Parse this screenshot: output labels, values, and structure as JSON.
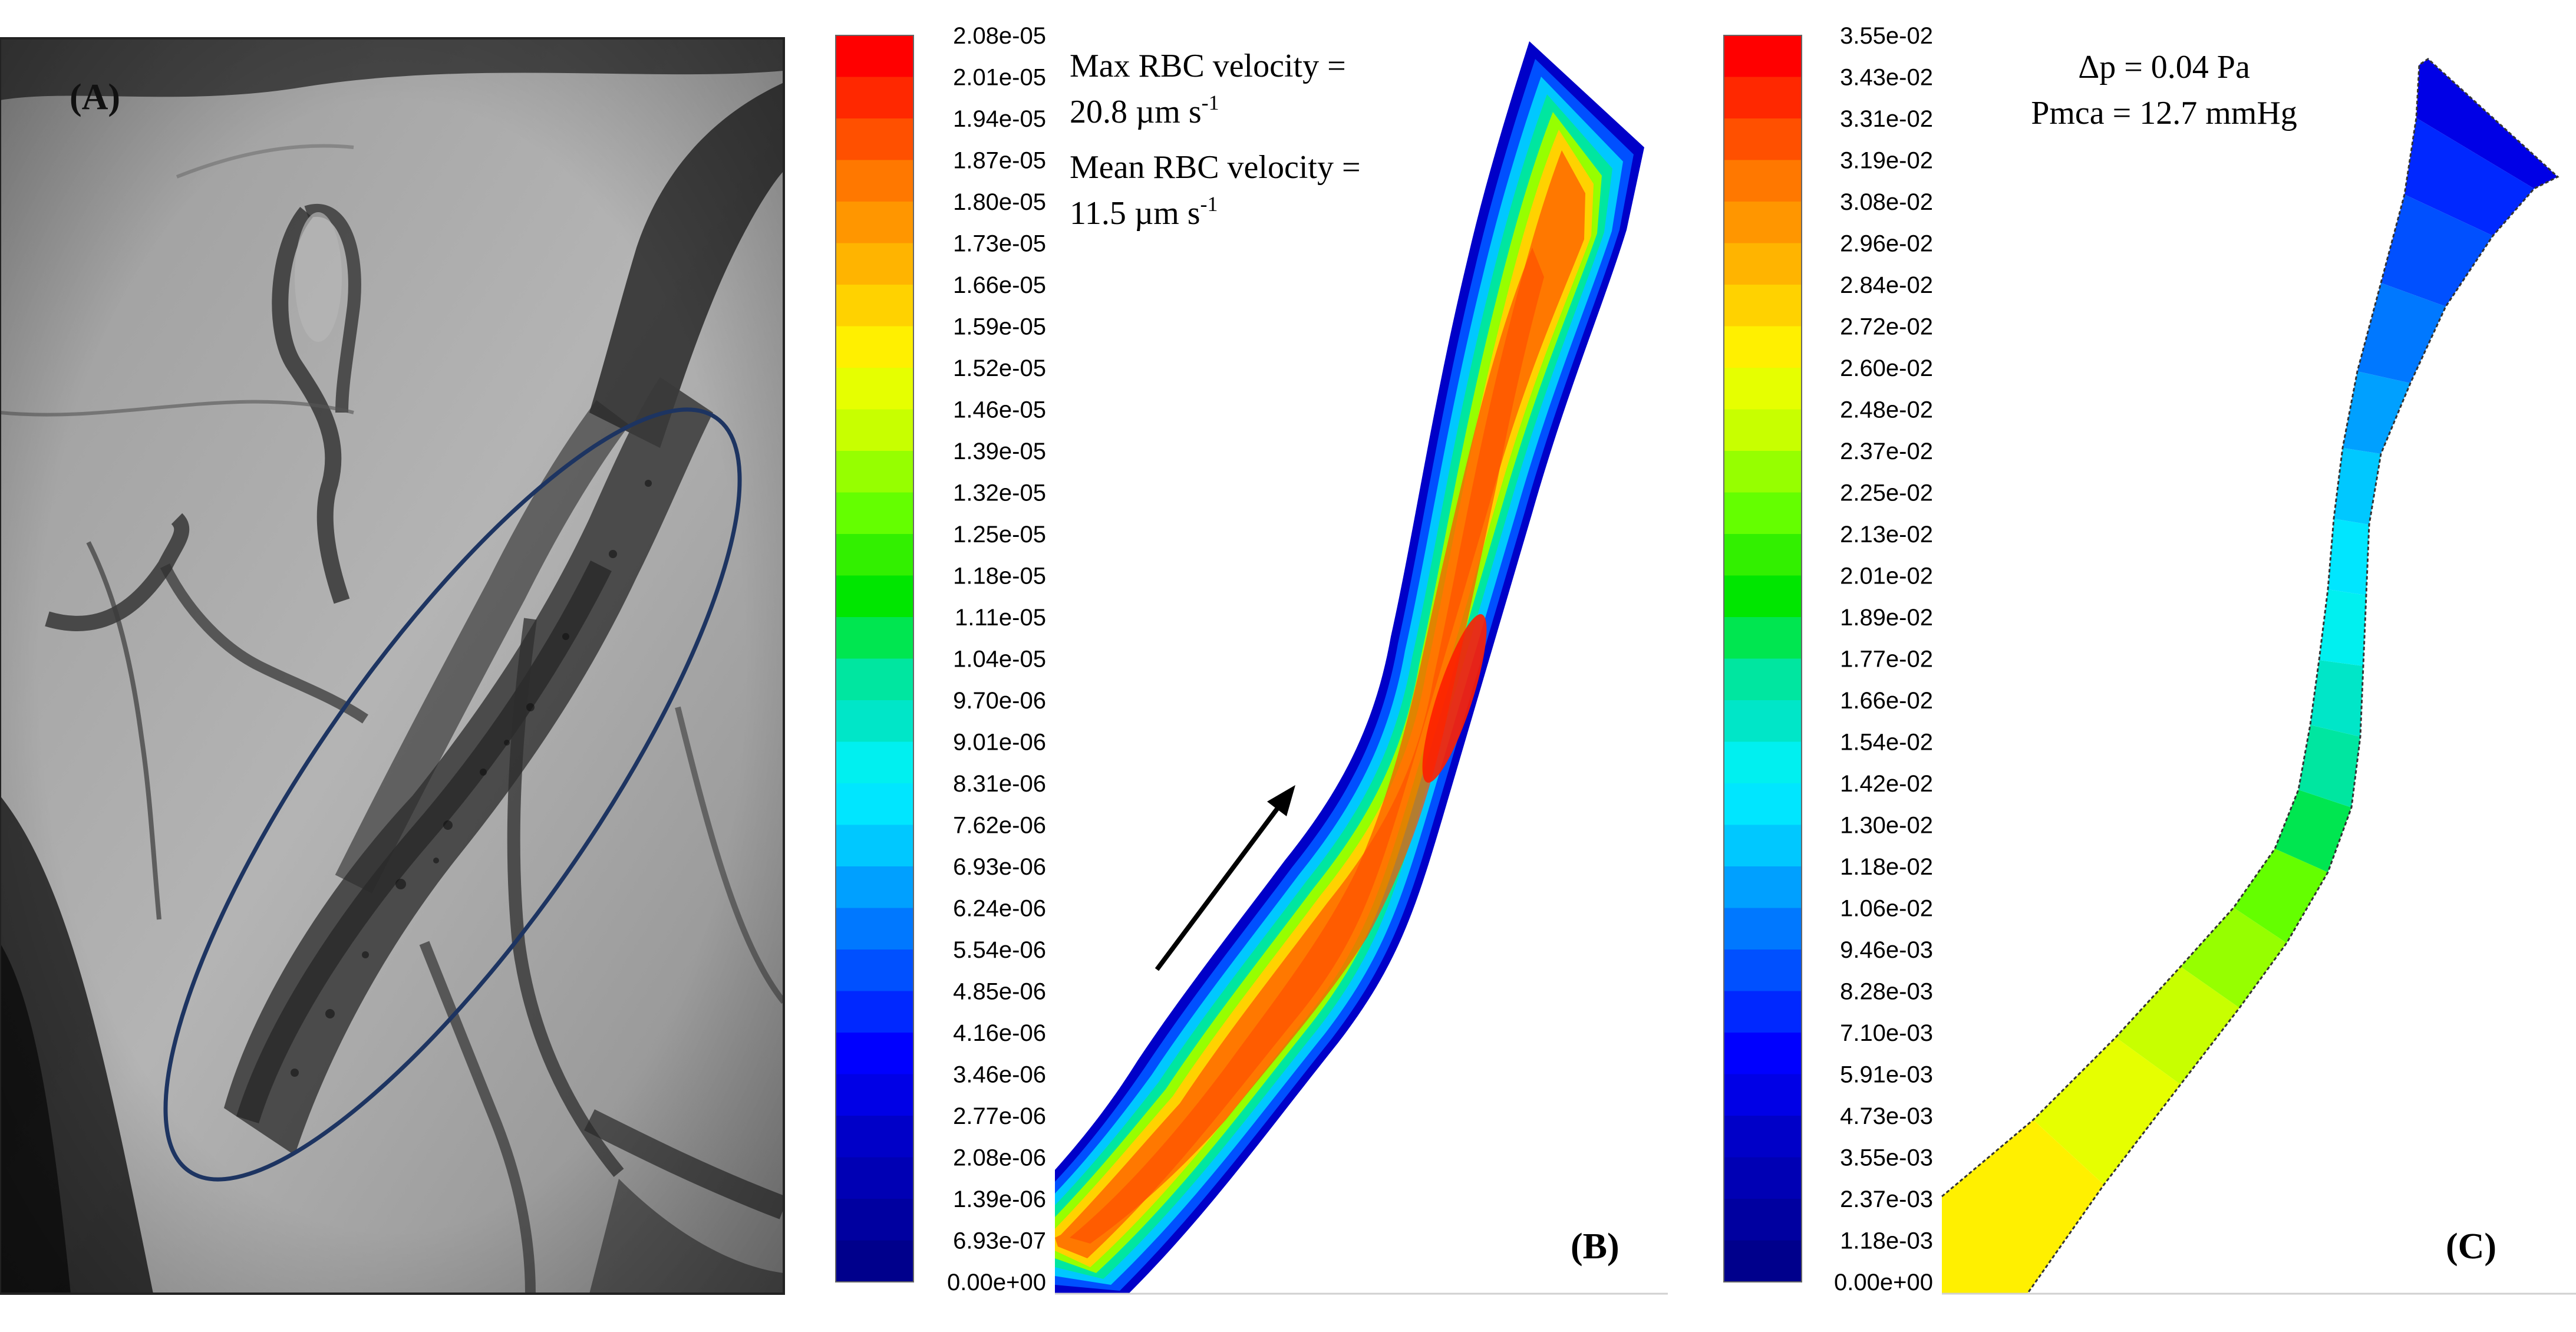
{
  "figure": {
    "panel_a": {
      "label": "(A)",
      "description": "microscopy of cerebral microvessels with elliptical region of interest"
    },
    "panel_b": {
      "label": "(B)",
      "annotation_lines": [
        "Max RBC velocity =",
        "20.8 µm s",
        "Mean RBC velocity =",
        "11.5 µm s"
      ],
      "unit_superscript": "-1",
      "colorbar_ticks": [
        "2.08e-05",
        "2.01e-05",
        "1.94e-05",
        "1.87e-05",
        "1.80e-05",
        "1.73e-05",
        "1.66e-05",
        "1.59e-05",
        "1.52e-05",
        "1.46e-05",
        "1.39e-05",
        "1.32e-05",
        "1.25e-05",
        "1.18e-05",
        "1.11e-05",
        "1.04e-05",
        "9.70e-06",
        "9.01e-06",
        "8.31e-06",
        "7.62e-06",
        "6.93e-06",
        "6.24e-06",
        "5.54e-06",
        "4.85e-06",
        "4.16e-06",
        "3.46e-06",
        "2.77e-06",
        "2.08e-06",
        "1.39e-06",
        "6.93e-07",
        "0.00e+00"
      ],
      "flow_arrow": "flow-direction"
    },
    "panel_c": {
      "label": "(C)",
      "annotation_lines": [
        "Δp = 0.04 Pa",
        "Pmca = 12.7 mmHg"
      ],
      "colorbar_ticks": [
        "3.55e-02",
        "3.43e-02",
        "3.31e-02",
        "3.19e-02",
        "3.08e-02",
        "2.96e-02",
        "2.84e-02",
        "2.72e-02",
        "2.60e-02",
        "2.48e-02",
        "2.37e-02",
        "2.25e-02",
        "2.13e-02",
        "2.01e-02",
        "1.89e-02",
        "1.77e-02",
        "1.66e-02",
        "1.54e-02",
        "1.42e-02",
        "1.30e-02",
        "1.18e-02",
        "1.06e-02",
        "9.46e-03",
        "8.28e-03",
        "7.10e-03",
        "5.91e-03",
        "4.73e-03",
        "3.55e-03",
        "2.37e-03",
        "1.18e-03",
        "0.00e+00"
      ]
    },
    "colormap": [
      "#ff0000",
      "#ff2800",
      "#ff5000",
      "#ff7800",
      "#ff9600",
      "#ffb400",
      "#ffd200",
      "#fff000",
      "#e6ff00",
      "#c8ff00",
      "#96ff00",
      "#64ff00",
      "#32f000",
      "#00e600",
      "#00e650",
      "#00e6a0",
      "#00e6c8",
      "#00f0f0",
      "#00e6ff",
      "#00c8ff",
      "#00a0ff",
      "#0078ff",
      "#0050ff",
      "#0028ff",
      "#0000ff",
      "#0000e6",
      "#0000c8",
      "#0000b4",
      "#0000a0",
      "#00008c"
    ]
  }
}
